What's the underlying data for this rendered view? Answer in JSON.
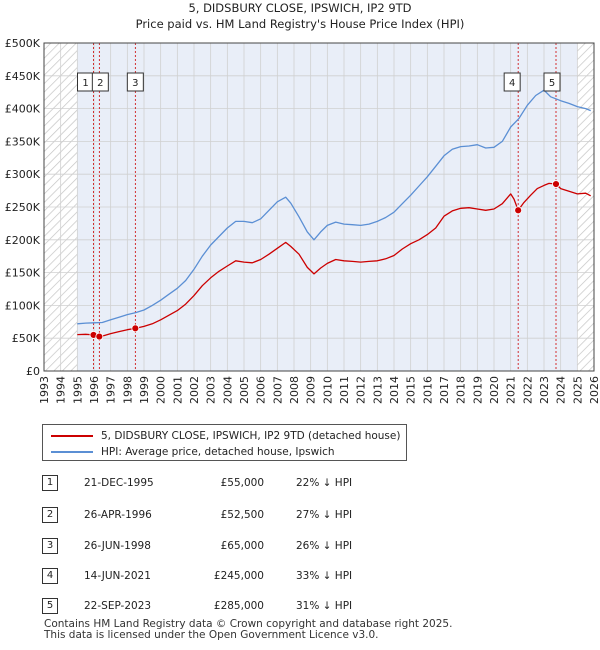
{
  "chart_data": {
    "type": "line",
    "title": "5, DIDSBURY CLOSE, IPSWICH, IP2 9TD",
    "subtitle": "Price paid vs. HM Land Registry's House Price Index (HPI)",
    "xlabel": "",
    "ylabel": "",
    "xlim": [
      1993,
      2026
    ],
    "ylim": [
      0,
      500000
    ],
    "yticks": [
      {
        "value": 0,
        "label": "£0"
      },
      {
        "value": 50000,
        "label": "£50K"
      },
      {
        "value": 100000,
        "label": "£100K"
      },
      {
        "value": 150000,
        "label": "£150K"
      },
      {
        "value": 200000,
        "label": "£200K"
      },
      {
        "value": 250000,
        "label": "£250K"
      },
      {
        "value": 300000,
        "label": "£300K"
      },
      {
        "value": 350000,
        "label": "£350K"
      },
      {
        "value": 400000,
        "label": "£400K"
      },
      {
        "value": 450000,
        "label": "£450K"
      },
      {
        "value": 500000,
        "label": "£500K"
      }
    ],
    "xticks": [
      "1993",
      "1994",
      "1995",
      "1996",
      "1997",
      "1998",
      "1999",
      "2000",
      "2001",
      "2002",
      "2003",
      "2004",
      "2005",
      "2006",
      "2007",
      "2008",
      "2009",
      "2010",
      "2011",
      "2012",
      "2013",
      "2014",
      "2015",
      "2016",
      "2017",
      "2018",
      "2019",
      "2020",
      "2021",
      "2022",
      "2023",
      "2024",
      "2025",
      "2026"
    ],
    "hatched_ranges": [
      [
        1993,
        1995.0
      ],
      [
        2025.0,
        2026
      ]
    ],
    "shaded_range": [
      1995.0,
      2025.0
    ],
    "series": [
      {
        "name": "5, DIDSBURY CLOSE, IPSWICH, IP2 9TD (detached house)",
        "color": "#cc0000",
        "points": [
          [
            1995.0,
            55500
          ],
          [
            1995.5,
            56000
          ],
          [
            1995.97,
            55000
          ],
          [
            1996.32,
            52500
          ],
          [
            1996.6,
            54000
          ],
          [
            1997.0,
            57000
          ],
          [
            1997.5,
            60000
          ],
          [
            1998.0,
            63000
          ],
          [
            1998.48,
            65000
          ],
          [
            1999.0,
            68000
          ],
          [
            1999.5,
            72000
          ],
          [
            2000.0,
            78000
          ],
          [
            2000.5,
            85000
          ],
          [
            2001.0,
            92000
          ],
          [
            2001.5,
            102000
          ],
          [
            2002.0,
            115000
          ],
          [
            2002.5,
            130000
          ],
          [
            2003.0,
            142000
          ],
          [
            2003.5,
            152000
          ],
          [
            2004.0,
            160000
          ],
          [
            2004.5,
            168000
          ],
          [
            2005.0,
            166000
          ],
          [
            2005.5,
            165000
          ],
          [
            2006.0,
            170000
          ],
          [
            2006.5,
            178000
          ],
          [
            2007.0,
            187000
          ],
          [
            2007.5,
            196000
          ],
          [
            2007.8,
            190000
          ],
          [
            2008.3,
            178000
          ],
          [
            2008.8,
            158000
          ],
          [
            2009.2,
            148000
          ],
          [
            2009.6,
            157000
          ],
          [
            2010.0,
            164000
          ],
          [
            2010.5,
            170000
          ],
          [
            2011.0,
            168000
          ],
          [
            2011.5,
            167000
          ],
          [
            2012.0,
            166000
          ],
          [
            2012.5,
            167000
          ],
          [
            2013.0,
            168000
          ],
          [
            2013.5,
            171000
          ],
          [
            2014.0,
            176000
          ],
          [
            2014.5,
            186000
          ],
          [
            2015.0,
            194000
          ],
          [
            2015.5,
            200000
          ],
          [
            2016.0,
            208000
          ],
          [
            2016.5,
            218000
          ],
          [
            2017.0,
            236000
          ],
          [
            2017.5,
            244000
          ],
          [
            2018.0,
            248000
          ],
          [
            2018.5,
            249000
          ],
          [
            2019.0,
            247000
          ],
          [
            2019.5,
            245000
          ],
          [
            2020.0,
            247000
          ],
          [
            2020.5,
            255000
          ],
          [
            2021.0,
            270000
          ],
          [
            2021.2,
            262000
          ],
          [
            2021.45,
            245000
          ],
          [
            2021.8,
            257000
          ],
          [
            2022.2,
            268000
          ],
          [
            2022.6,
            278000
          ],
          [
            2023.0,
            283000
          ],
          [
            2023.3,
            286000
          ],
          [
            2023.72,
            285000
          ],
          [
            2024.0,
            278000
          ],
          [
            2024.5,
            274000
          ],
          [
            2025.0,
            270000
          ],
          [
            2025.5,
            271000
          ],
          [
            2025.8,
            267000
          ]
        ]
      },
      {
        "name": "HPI: Average price, detached house, Ipswich",
        "color": "#5b8fd4",
        "points": [
          [
            1995.0,
            72000
          ],
          [
            1995.5,
            73000
          ],
          [
            1996.0,
            73500
          ],
          [
            1996.5,
            74000
          ],
          [
            1997.0,
            78000
          ],
          [
            1997.5,
            82000
          ],
          [
            1998.0,
            86000
          ],
          [
            1998.5,
            89000
          ],
          [
            1999.0,
            93000
          ],
          [
            1999.5,
            100000
          ],
          [
            2000.0,
            108000
          ],
          [
            2000.5,
            117000
          ],
          [
            2001.0,
            126000
          ],
          [
            2001.5,
            138000
          ],
          [
            2002.0,
            155000
          ],
          [
            2002.5,
            175000
          ],
          [
            2003.0,
            192000
          ],
          [
            2003.5,
            205000
          ],
          [
            2004.0,
            218000
          ],
          [
            2004.5,
            228000
          ],
          [
            2005.0,
            228000
          ],
          [
            2005.5,
            226000
          ],
          [
            2006.0,
            232000
          ],
          [
            2006.5,
            245000
          ],
          [
            2007.0,
            258000
          ],
          [
            2007.5,
            265000
          ],
          [
            2007.8,
            256000
          ],
          [
            2008.3,
            235000
          ],
          [
            2008.8,
            212000
          ],
          [
            2009.2,
            200000
          ],
          [
            2009.6,
            212000
          ],
          [
            2010.0,
            222000
          ],
          [
            2010.5,
            227000
          ],
          [
            2011.0,
            224000
          ],
          [
            2011.5,
            223000
          ],
          [
            2012.0,
            222000
          ],
          [
            2012.5,
            224000
          ],
          [
            2013.0,
            228000
          ],
          [
            2013.5,
            234000
          ],
          [
            2014.0,
            242000
          ],
          [
            2014.5,
            255000
          ],
          [
            2015.0,
            268000
          ],
          [
            2015.5,
            282000
          ],
          [
            2016.0,
            296000
          ],
          [
            2016.5,
            312000
          ],
          [
            2017.0,
            328000
          ],
          [
            2017.5,
            338000
          ],
          [
            2018.0,
            342000
          ],
          [
            2018.5,
            343000
          ],
          [
            2019.0,
            345000
          ],
          [
            2019.5,
            340000
          ],
          [
            2020.0,
            341000
          ],
          [
            2020.5,
            350000
          ],
          [
            2021.0,
            372000
          ],
          [
            2021.5,
            385000
          ],
          [
            2022.0,
            405000
          ],
          [
            2022.5,
            420000
          ],
          [
            2023.0,
            428000
          ],
          [
            2023.4,
            418000
          ],
          [
            2024.0,
            412000
          ],
          [
            2024.5,
            408000
          ],
          [
            2025.0,
            403000
          ],
          [
            2025.5,
            400000
          ],
          [
            2025.8,
            397000
          ]
        ]
      }
    ],
    "sales": [
      {
        "num": "1",
        "t": 1995.97,
        "price": 55000
      },
      {
        "num": "2",
        "t": 1996.32,
        "price": 52500
      },
      {
        "num": "3",
        "t": 1998.48,
        "price": 65000
      },
      {
        "num": "4",
        "t": 2021.45,
        "price": 245000
      },
      {
        "num": "5",
        "t": 2023.72,
        "price": 285000
      }
    ],
    "colors": {
      "price_line": "#cc0000",
      "hpi_line": "#5b8fd4",
      "marker_box": "#333333",
      "vline": "#cc0000",
      "shade": "#e9eef8",
      "grid": "#d0d0d0"
    }
  },
  "legend": {
    "price_label": "5, DIDSBURY CLOSE, IPSWICH, IP2 9TD (detached house)",
    "hpi_label": "HPI: Average price, detached house, Ipswich"
  },
  "table": [
    {
      "num": "1",
      "date": "21-DEC-1995",
      "price": "£55,000",
      "delta": "22% ↓ HPI"
    },
    {
      "num": "2",
      "date": "26-APR-1996",
      "price": "£52,500",
      "delta": "27% ↓ HPI"
    },
    {
      "num": "3",
      "date": "26-JUN-1998",
      "price": "£65,000",
      "delta": "26% ↓ HPI"
    },
    {
      "num": "4",
      "date": "14-JUN-2021",
      "price": "£245,000",
      "delta": "33% ↓ HPI"
    },
    {
      "num": "5",
      "date": "22-SEP-2023",
      "price": "£285,000",
      "delta": "31% ↓ HPI"
    }
  ],
  "footer": {
    "line1": "Contains HM Land Registry data © Crown copyright and database right 2025.",
    "line2": "This data is licensed under the Open Government Licence v3.0."
  }
}
